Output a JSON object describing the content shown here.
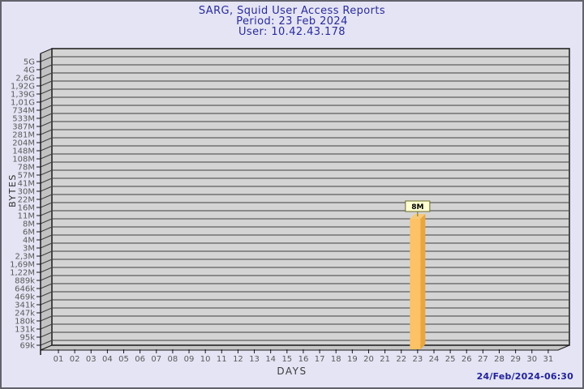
{
  "header": {
    "title": "SARG, Squid User Access Reports",
    "period": "Period: 23 Feb 2024",
    "user": "User: 10.42.43.178"
  },
  "footer": {
    "generated": "24/Feb/2024-06:30"
  },
  "chart_data": {
    "type": "bar",
    "title": "SARG, Squid User Access Reports",
    "subtitle_period": "Period: 23 Feb 2024",
    "subtitle_user": "User: 10.42.43.178",
    "xlabel": "DAYS",
    "ylabel": "BYTES",
    "y_scale": "sarg-log-ticks",
    "y_tick_labels": [
      "5G",
      "4G",
      "2,6G",
      "1,92G",
      "1,39G",
      "1,01G",
      "734M",
      "533M",
      "387M",
      "281M",
      "204M",
      "148M",
      "108M",
      "78M",
      "57M",
      "41M",
      "30M",
      "22M",
      "16M",
      "11M",
      "8M",
      "6M",
      "4M",
      "3M",
      "2,3M",
      "1,69M",
      "1,22M",
      "889k",
      "646k",
      "469k",
      "341k",
      "247k",
      "180k",
      "131k",
      "95k",
      "69k"
    ],
    "categories": [
      "01",
      "02",
      "03",
      "04",
      "05",
      "06",
      "07",
      "08",
      "09",
      "10",
      "11",
      "12",
      "13",
      "14",
      "15",
      "16",
      "17",
      "18",
      "19",
      "20",
      "21",
      "22",
      "23",
      "24",
      "25",
      "26",
      "27",
      "28",
      "29",
      "30",
      "31"
    ],
    "values": [
      0,
      0,
      0,
      0,
      0,
      0,
      0,
      0,
      0,
      0,
      0,
      0,
      0,
      0,
      0,
      0,
      0,
      0,
      0,
      0,
      0,
      0,
      8,
      0,
      0,
      0,
      0,
      0,
      0,
      0,
      0
    ],
    "values_unit": "MB",
    "bars": [
      {
        "day": "23",
        "value_label": "8M",
        "y_tick": "8M"
      }
    ],
    "grid": true,
    "legend": "none",
    "colors": {
      "background": "#e4e4f4",
      "plot_bg": "#d4d4d4",
      "wall": "#c2c2c2",
      "floor": "#c6c6c6",
      "grid_line": "#3f3f3f",
      "axis_line": "#1a1a1a",
      "tick_text": "#5a5a5a",
      "title_text": "#2b2b9b",
      "bar_front": "#fcc265",
      "bar_side": "#e9a63c",
      "bar_top": "#f6c979",
      "value_box_bg": "#ffffd2",
      "value_box_border": "#6b6b2a",
      "value_text": "#000000"
    }
  }
}
